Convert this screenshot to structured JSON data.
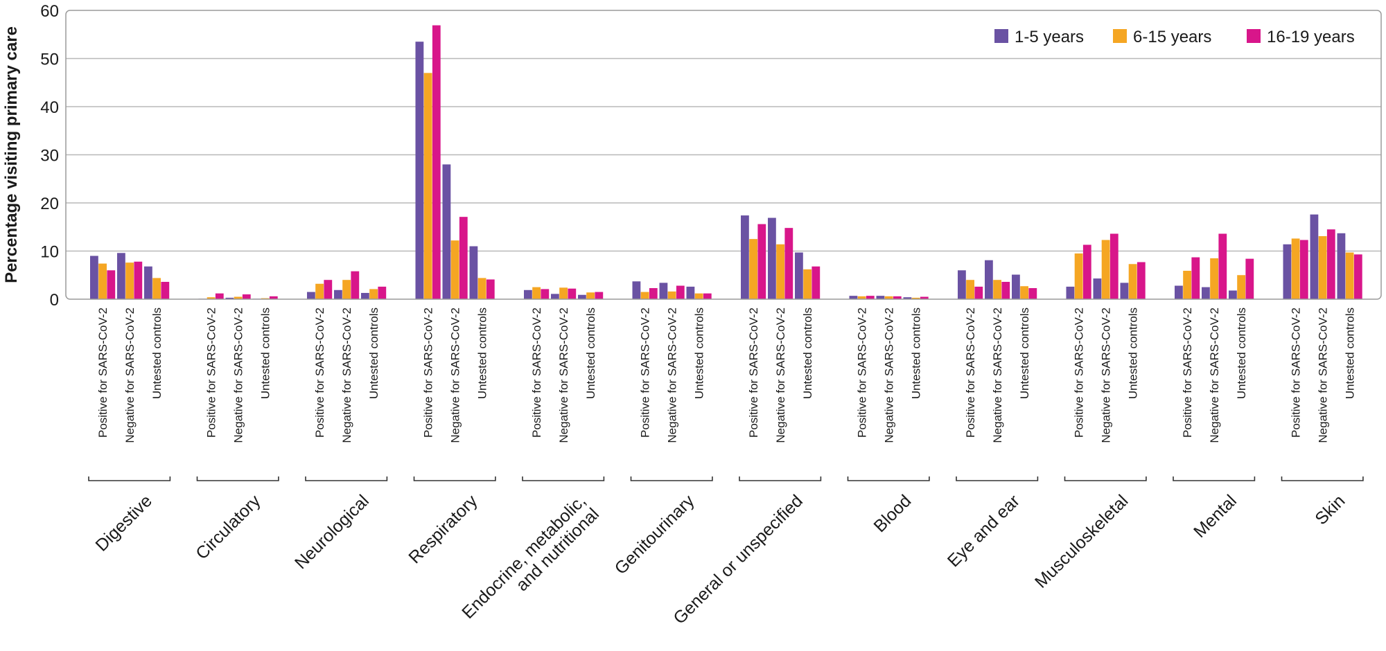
{
  "chart_data": {
    "type": "bar",
    "ylabel": "Percentage visiting primary care",
    "ylim": [
      0,
      60
    ],
    "yticks": [
      0,
      10,
      20,
      30,
      40,
      50,
      60
    ],
    "grid": true,
    "legend_position": "top-right",
    "subcategories": [
      "Positive for SARS-CoV-2",
      "Negative for SARS-CoV-2",
      "Untested controls"
    ],
    "groups": [
      {
        "name": "Digestive",
        "label_lines": [
          "Digestive"
        ]
      },
      {
        "name": "Circulatory",
        "label_lines": [
          "Circulatory"
        ]
      },
      {
        "name": "Neurological",
        "label_lines": [
          "Neurological"
        ]
      },
      {
        "name": "Respiratory",
        "label_lines": [
          "Respiratory"
        ]
      },
      {
        "name": "Endocrine, metabolic, and nutritional",
        "label_lines": [
          "Endocrine, metabolic,",
          "and nutritional"
        ]
      },
      {
        "name": "Genitourinary",
        "label_lines": [
          "Genitourinary"
        ]
      },
      {
        "name": "General or unspecified",
        "label_lines": [
          "General or unspecified"
        ]
      },
      {
        "name": "Blood",
        "label_lines": [
          "Blood"
        ]
      },
      {
        "name": "Eye and ear",
        "label_lines": [
          "Eye and ear"
        ]
      },
      {
        "name": "Musculoskeletal",
        "label_lines": [
          "Musculoskeletal"
        ]
      },
      {
        "name": "Mental",
        "label_lines": [
          "Mental"
        ]
      },
      {
        "name": "Skin",
        "label_lines": [
          "Skin"
        ]
      }
    ],
    "series": [
      {
        "name": "1-5 years",
        "color": "#6a52a3",
        "values": [
          [
            9.0,
            9.6,
            6.8
          ],
          [
            0.1,
            0.3,
            0.1
          ],
          [
            1.5,
            1.9,
            1.3
          ],
          [
            53.5,
            28.0,
            11.0
          ],
          [
            1.9,
            1.1,
            0.9
          ],
          [
            3.7,
            3.4,
            2.6
          ],
          [
            17.4,
            16.9,
            9.7
          ],
          [
            0.7,
            0.7,
            0.4
          ],
          [
            6.0,
            8.1,
            5.1
          ],
          [
            2.6,
            4.3,
            3.4
          ],
          [
            2.8,
            2.5,
            1.8
          ],
          [
            11.4,
            17.6,
            13.7
          ]
        ]
      },
      {
        "name": "6-15 years",
        "color": "#f5a623",
        "values": [
          [
            7.4,
            7.6,
            4.4
          ],
          [
            0.4,
            0.5,
            0.2
          ],
          [
            3.2,
            4.0,
            2.1
          ],
          [
            47.0,
            12.2,
            4.4
          ],
          [
            2.5,
            2.4,
            1.4
          ],
          [
            1.5,
            1.6,
            1.2
          ],
          [
            12.5,
            11.4,
            6.2
          ],
          [
            0.6,
            0.6,
            0.3
          ],
          [
            4.0,
            4.0,
            2.7
          ],
          [
            9.5,
            12.3,
            7.3
          ],
          [
            5.9,
            8.5,
            5.0
          ],
          [
            12.6,
            13.1,
            9.7
          ]
        ]
      },
      {
        "name": "16-19 years",
        "color": "#d8168a",
        "values": [
          [
            6.0,
            7.8,
            3.6
          ],
          [
            1.2,
            1.0,
            0.6
          ],
          [
            4.0,
            5.8,
            2.6
          ],
          [
            56.9,
            17.1,
            4.1
          ],
          [
            2.1,
            2.2,
            1.5
          ],
          [
            2.3,
            2.8,
            1.2
          ],
          [
            15.6,
            14.8,
            6.8
          ],
          [
            0.7,
            0.6,
            0.5
          ],
          [
            2.6,
            3.6,
            2.3
          ],
          [
            11.3,
            13.6,
            7.7
          ],
          [
            8.7,
            13.6,
            8.4
          ],
          [
            12.3,
            14.5,
            9.3
          ]
        ]
      }
    ]
  }
}
